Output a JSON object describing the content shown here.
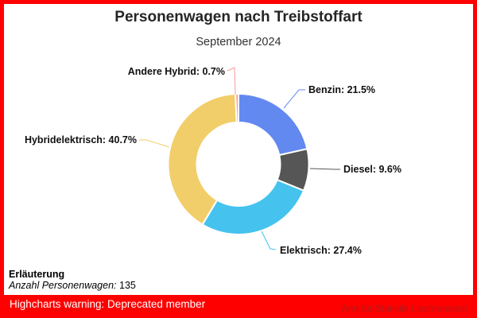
{
  "frame": {
    "border_color": "#ff0000"
  },
  "header": {
    "title": "Personenwagen nach Treibstoffart",
    "subtitle": "September 2024"
  },
  "chart_data": {
    "type": "pie",
    "subtype": "donut",
    "title": "Personenwagen nach Treibstoffart",
    "subtitle": "September 2024",
    "unit": "%",
    "start_angle_deg": 0,
    "direction": "clockwise",
    "inner_radius_ratio": 0.59,
    "label_format": "{name}: {value}%",
    "series": [
      {
        "name": "Benzin",
        "value": 21.5,
        "color": "#6289f0"
      },
      {
        "name": "Diesel",
        "value": 9.6,
        "color": "#565656"
      },
      {
        "name": "Elektrisch",
        "value": 27.4,
        "color": "#45c3ee"
      },
      {
        "name": "Hybridelektrisch",
        "value": 40.7,
        "color": "#f2ce6a"
      },
      {
        "name": "Andere Hybrid",
        "value": 0.7,
        "color": "#f89a9a"
      }
    ]
  },
  "footnote": {
    "heading": "Erläuterung",
    "label": "Anzahl Personenwagen:",
    "value": "135"
  },
  "warning_bar": {
    "text": "Highcharts warning: Deprecated member",
    "background": "#ff0000",
    "text_color": "#ffffff"
  },
  "credits": {
    "text": "Amt für Statistik Liechtenstein",
    "color": "#b41818"
  }
}
